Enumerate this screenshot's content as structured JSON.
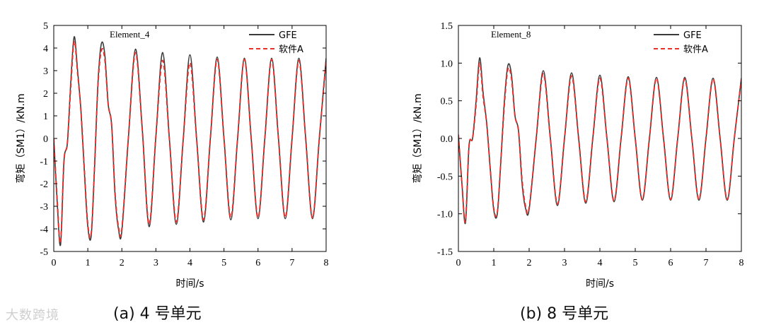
{
  "watermark": "大数跨境",
  "chart_data": [
    {
      "type": "line",
      "panel": "left",
      "annotation": "Element_4",
      "caption": "(a) 4 号单元",
      "xlabel": "时间/s",
      "ylabel": "弯矩（SM1）/kN.m",
      "xlim": [
        0,
        8
      ],
      "ylim": [
        -5,
        5
      ],
      "xticks": [
        0,
        1,
        2,
        3,
        4,
        5,
        6,
        7,
        8
      ],
      "xtick_labels": [
        "0",
        "1",
        "2",
        "3",
        "4",
        "5",
        "6",
        "7",
        "8"
      ],
      "yticks": [
        -5,
        -4,
        -3,
        -2,
        -1,
        0,
        1,
        2,
        3,
        4,
        5
      ],
      "ytick_labels": [
        "-5",
        "-4",
        "-3",
        "-2",
        "-1",
        "0",
        "1",
        "2",
        "3",
        "4",
        "5"
      ],
      "legend": [
        "GFE",
        "软件A"
      ],
      "legend_position": "top-right",
      "series": [
        {
          "name": "GFE",
          "color": "#3a3a3a",
          "style": "solid",
          "x": [
            0,
            0.1,
            0.2,
            0.3,
            0.4,
            0.5,
            0.6,
            0.7,
            0.8,
            0.9,
            1.0,
            1.1,
            1.2,
            1.3,
            1.4,
            1.5,
            1.6,
            1.7,
            1.8,
            1.9,
            2.0,
            2.2,
            2.4,
            2.6,
            2.8,
            3.0,
            3.2,
            3.4,
            3.6,
            3.8,
            4.0,
            4.2,
            4.4,
            4.6,
            4.8,
            5.0,
            5.2,
            5.4,
            5.6,
            5.8,
            6.0,
            6.2,
            6.4,
            6.6,
            6.8,
            7.0,
            7.2,
            7.4,
            7.6,
            7.8,
            8.0
          ],
          "y": [
            0,
            -2.8,
            -4.7,
            -1.0,
            -0.2,
            2.5,
            4.5,
            3.0,
            1.2,
            -1.5,
            -3.9,
            -4.3,
            -1.2,
            2.5,
            4.2,
            3.7,
            1.5,
            0.6,
            -2.5,
            -4.0,
            -4.1,
            0.2,
            3.95,
            0.4,
            -3.9,
            0.1,
            3.8,
            -0.1,
            -3.8,
            -0.1,
            3.7,
            -0.1,
            -3.7,
            0.0,
            3.6,
            0.0,
            -3.6,
            0.0,
            3.55,
            0.0,
            -3.55,
            0.0,
            3.55,
            0.0,
            -3.55,
            0.0,
            3.55,
            0.0,
            -3.55,
            0.0,
            3.55
          ]
        },
        {
          "name": "软件A",
          "color": "#e8302c",
          "style": "dashed",
          "x": [
            0,
            0.1,
            0.2,
            0.3,
            0.4,
            0.5,
            0.6,
            0.7,
            0.8,
            0.9,
            1.0,
            1.1,
            1.2,
            1.3,
            1.4,
            1.5,
            1.6,
            1.7,
            1.8,
            1.9,
            2.0,
            2.2,
            2.4,
            2.6,
            2.8,
            3.0,
            3.2,
            3.4,
            3.6,
            3.8,
            4.0,
            4.2,
            4.4,
            4.6,
            4.8,
            5.0,
            5.2,
            5.4,
            5.6,
            5.8,
            6.0,
            6.2,
            6.4,
            6.6,
            6.8,
            7.0,
            7.2,
            7.4,
            7.6,
            7.8,
            8.0
          ],
          "y": [
            0,
            -2.7,
            -4.6,
            -1.0,
            -0.2,
            2.3,
            4.3,
            2.9,
            1.2,
            -1.4,
            -3.8,
            -4.2,
            -1.2,
            2.4,
            3.9,
            3.5,
            1.5,
            0.6,
            -2.4,
            -3.9,
            -4.0,
            0.2,
            3.8,
            0.4,
            -3.8,
            0.1,
            3.45,
            -0.1,
            -3.7,
            -0.1,
            3.35,
            -0.1,
            -3.6,
            0.0,
            3.5,
            0.0,
            -3.5,
            0.0,
            3.5,
            0.0,
            -3.5,
            0.0,
            3.5,
            0.0,
            -3.5,
            0.0,
            3.45,
            0.0,
            -3.5,
            0.0,
            3.45
          ]
        }
      ]
    },
    {
      "type": "line",
      "panel": "right",
      "annotation": "Element_8",
      "caption": "(b) 8 号单元",
      "xlabel": "时间/s",
      "ylabel": "弯矩（SM1）/kN.m",
      "xlim": [
        0,
        8
      ],
      "ylim": [
        -1.5,
        1.5
      ],
      "xticks": [
        0,
        1,
        2,
        3,
        4,
        5,
        6,
        7,
        8
      ],
      "xtick_labels": [
        "0",
        "1",
        "2",
        "3",
        "4",
        "5",
        "6",
        "7",
        "8"
      ],
      "yticks": [
        -1.5,
        -1.0,
        -0.5,
        0.0,
        0.5,
        1.0,
        1.5
      ],
      "ytick_labels": [
        "-1.5",
        "-1.0",
        "-0.5",
        "0.0",
        "0.5",
        "1.0",
        "1.5"
      ],
      "legend": [
        "GFE",
        "软件A"
      ],
      "legend_position": "top-right",
      "series": [
        {
          "name": "GFE",
          "color": "#3a3a3a",
          "style": "solid",
          "x": [
            0,
            0.1,
            0.2,
            0.3,
            0.4,
            0.5,
            0.6,
            0.7,
            0.8,
            0.9,
            1.0,
            1.1,
            1.2,
            1.3,
            1.4,
            1.5,
            1.6,
            1.7,
            1.8,
            1.9,
            2.0,
            2.2,
            2.4,
            2.6,
            2.8,
            3.0,
            3.2,
            3.4,
            3.6,
            3.8,
            4.0,
            4.2,
            4.4,
            4.6,
            4.8,
            5.0,
            5.2,
            5.4,
            5.6,
            5.8,
            6.0,
            6.2,
            6.4,
            6.6,
            6.8,
            7.0,
            7.2,
            7.4,
            7.6,
            7.8,
            8.0
          ],
          "y": [
            0.05,
            -0.6,
            -1.12,
            -0.1,
            0.0,
            0.5,
            1.07,
            0.6,
            0.2,
            -0.4,
            -0.95,
            -1.0,
            -0.3,
            0.5,
            0.97,
            0.85,
            0.3,
            0.1,
            -0.6,
            -0.93,
            -0.94,
            0.0,
            0.9,
            0.0,
            -0.89,
            0.0,
            0.87,
            0.0,
            -0.86,
            0.0,
            0.84,
            0.0,
            -0.84,
            0.0,
            0.82,
            0.0,
            -0.82,
            0.0,
            0.81,
            0.0,
            -0.82,
            0.0,
            0.81,
            0.0,
            -0.82,
            0.0,
            0.8,
            0.0,
            -0.82,
            0.0,
            0.8
          ]
        },
        {
          "name": "软件A",
          "color": "#e8302c",
          "style": "dashed",
          "x": [
            0,
            0.1,
            0.2,
            0.3,
            0.4,
            0.5,
            0.6,
            0.7,
            0.8,
            0.9,
            1.0,
            1.1,
            1.2,
            1.3,
            1.4,
            1.5,
            1.6,
            1.7,
            1.8,
            1.9,
            2.0,
            2.2,
            2.4,
            2.6,
            2.8,
            3.0,
            3.2,
            3.4,
            3.6,
            3.8,
            4.0,
            4.2,
            4.4,
            4.6,
            4.8,
            5.0,
            5.2,
            5.4,
            5.6,
            5.8,
            6.0,
            6.2,
            6.4,
            6.6,
            6.8,
            7.0,
            7.2,
            7.4,
            7.6,
            7.8,
            8.0
          ],
          "y": [
            0.05,
            -0.6,
            -1.1,
            -0.1,
            0.0,
            0.45,
            1.0,
            0.55,
            0.2,
            -0.4,
            -0.93,
            -0.98,
            -0.3,
            0.45,
            0.92,
            0.8,
            0.3,
            0.1,
            -0.55,
            -0.9,
            -0.92,
            0.0,
            0.86,
            0.0,
            -0.87,
            0.0,
            0.83,
            0.0,
            -0.84,
            0.0,
            0.8,
            0.0,
            -0.83,
            0.0,
            0.8,
            0.0,
            -0.81,
            0.0,
            0.8,
            0.0,
            -0.81,
            0.0,
            0.79,
            0.0,
            -0.81,
            0.0,
            0.79,
            0.0,
            -0.81,
            0.0,
            0.79
          ]
        }
      ]
    }
  ]
}
